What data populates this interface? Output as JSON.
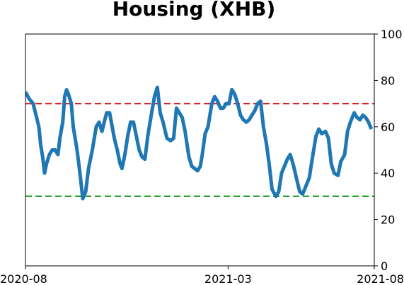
{
  "chart_data": {
    "type": "line",
    "title": "Housing (XHB)",
    "xlabel": "",
    "ylabel": "",
    "x_ticks": [
      "2020-08",
      "2021-03",
      "2021-08"
    ],
    "y_ticks": [
      0,
      20,
      40,
      60,
      80,
      100
    ],
    "ylim": [
      0,
      100
    ],
    "y_axis_side": "right",
    "grid": false,
    "legend": "none",
    "reference_lines": [
      {
        "value": 70,
        "color": "#d62728",
        "style": "dashed"
      },
      {
        "value": 30,
        "color": "#2ca02c",
        "style": "dashed"
      }
    ],
    "series": [
      {
        "color": "#1f77b4",
        "x": [
          "2020-08-01",
          "2020-08-05",
          "2020-08-09",
          "2020-08-12",
          "2020-08-15",
          "2020-08-17",
          "2020-08-19",
          "2020-08-21",
          "2020-08-23",
          "2020-08-26",
          "2020-08-29",
          "2020-09-01",
          "2020-09-04",
          "2020-09-06",
          "2020-09-09",
          "2020-09-11",
          "2020-09-13",
          "2020-09-15",
          "2020-09-18",
          "2020-09-20",
          "2020-09-24",
          "2020-09-27",
          "2020-09-30",
          "2020-10-03",
          "2020-10-06",
          "2020-10-10",
          "2020-10-14",
          "2020-10-17",
          "2020-10-20",
          "2020-10-23",
          "2020-10-25",
          "2020-10-28",
          "2020-11-02",
          "2020-11-05",
          "2020-11-08",
          "2020-11-10",
          "2020-11-13",
          "2020-11-16",
          "2020-11-19",
          "2020-11-22",
          "2020-11-25",
          "2020-11-28",
          "2020-12-01",
          "2020-12-04",
          "2020-12-07",
          "2020-12-11",
          "2020-12-14",
          "2020-12-17",
          "2020-12-20",
          "2020-12-23",
          "2020-12-27",
          "2020-12-31",
          "2021-01-03",
          "2021-01-06",
          "2021-01-09",
          "2021-01-12",
          "2021-01-15",
          "2021-01-19",
          "2021-01-22",
          "2021-01-25",
          "2021-01-28",
          "2021-01-31",
          "2021-02-02",
          "2021-02-05",
          "2021-02-08",
          "2021-02-12",
          "2021-02-15",
          "2021-02-18",
          "2021-02-21",
          "2021-02-24",
          "2021-02-27",
          "2021-03-02",
          "2021-03-05",
          "2021-03-08",
          "2021-03-11",
          "2021-03-14",
          "2021-03-17",
          "2021-03-20",
          "2021-03-23",
          "2021-03-26",
          "2021-03-29",
          "2021-04-01",
          "2021-04-04",
          "2021-04-07",
          "2021-04-10",
          "2021-04-13",
          "2021-04-16",
          "2021-04-20",
          "2021-04-23",
          "2021-04-26",
          "2021-04-29",
          "2021-05-02",
          "2021-05-05",
          "2021-05-08",
          "2021-05-12",
          "2021-05-15",
          "2021-05-18",
          "2021-05-21",
          "2021-05-25",
          "2021-05-28",
          "2021-06-01",
          "2021-06-04",
          "2021-06-07",
          "2021-06-11",
          "2021-06-14",
          "2021-06-17",
          "2021-06-20",
          "2021-06-24",
          "2021-06-27",
          "2021-07-01",
          "2021-07-04",
          "2021-07-07",
          "2021-07-11",
          "2021-07-14",
          "2021-07-17",
          "2021-07-20",
          "2021-07-23",
          "2021-07-26",
          "2021-07-29"
        ],
        "values": [
          75,
          72,
          70,
          65,
          60,
          52,
          47,
          40,
          44,
          48,
          50,
          50,
          48,
          55,
          62,
          73,
          76,
          74,
          70,
          60,
          50,
          40,
          29,
          32,
          42,
          50,
          60,
          62,
          58,
          63,
          66,
          66,
          55,
          50,
          44,
          42,
          48,
          56,
          62,
          62,
          56,
          50,
          47,
          46,
          56,
          66,
          73,
          77,
          66,
          62,
          55,
          54,
          55,
          68,
          66,
          64,
          58,
          47,
          43,
          42,
          41,
          43,
          48,
          57,
          60,
          70,
          73,
          71,
          68,
          68,
          70,
          70,
          76,
          74,
          70,
          65,
          63,
          62,
          63,
          65,
          67,
          70,
          71,
          60,
          53,
          44,
          33,
          30,
          32,
          40,
          43,
          46,
          48,
          44,
          37,
          32,
          31,
          34,
          38,
          46,
          56,
          59,
          57,
          58,
          55,
          44,
          40,
          39,
          45,
          48,
          58,
          62,
          66,
          64,
          63,
          65,
          64,
          62,
          59
        ]
      }
    ]
  }
}
